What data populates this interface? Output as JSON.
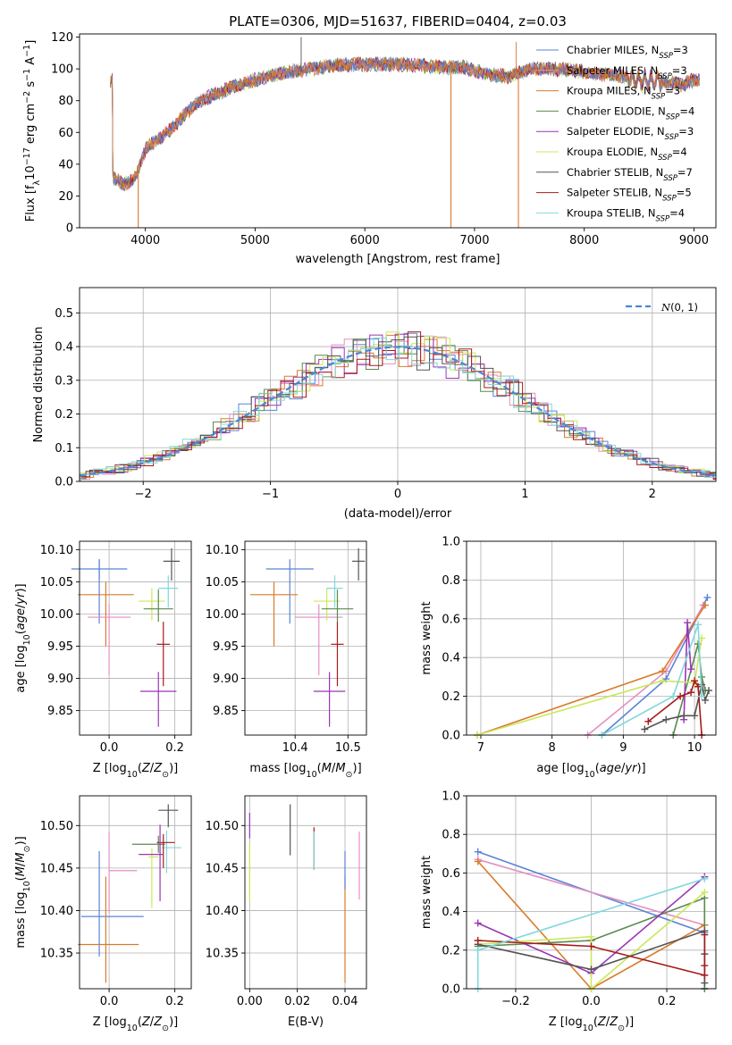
{
  "chart_data": [
    {
      "id": "spectrum",
      "type": "line",
      "title": "PLATE=0306, MJD=51637, FIBERID=0404, z=0.03",
      "xlabel": "wavelength [Angstrom, rest frame]",
      "ylabel": "Flux [f_λ10⁻¹⁷ erg cm⁻² s⁻¹ A⁻¹]",
      "xlim": [
        3400,
        9200
      ],
      "ylim": [
        0,
        122
      ],
      "xticks": [
        "4000",
        "5000",
        "6000",
        "7000",
        "8000",
        "9000"
      ],
      "yticks": [
        "0",
        "20",
        "40",
        "60",
        "80",
        "100",
        "120"
      ],
      "grid": false,
      "legend_position": "top-right",
      "series": [
        {
          "name": "Chabrier MILES, N",
          "sub": "SSP",
          "suffix": "=3",
          "color": "#5b84d6"
        },
        {
          "name": "Salpeter MILES, N",
          "sub": "SSP",
          "suffix": "=3",
          "color": "#e58fc2"
        },
        {
          "name": "Kroupa MILES, N",
          "sub": "SSP",
          "suffix": "=3",
          "color": "#d97b2b"
        },
        {
          "name": "Chabrier ELODIE, N",
          "sub": "SSP",
          "suffix": "=4",
          "color": "#5a8a4f"
        },
        {
          "name": "Salpeter ELODIE, N",
          "sub": "SSP",
          "suffix": "=3",
          "color": "#9b35b5"
        },
        {
          "name": "Kroupa ELODIE, N",
          "sub": "SSP",
          "suffix": "=4",
          "color": "#cbe85a"
        },
        {
          "name": "Chabrier STELIB, N",
          "sub": "SSP",
          "suffix": "=7",
          "color": "#555555"
        },
        {
          "name": "Salpeter STELIB, N",
          "sub": "SSP",
          "suffix": "=5",
          "color": "#a81a1a"
        },
        {
          "name": "Kroupa STELIB, N",
          "sub": "SSP",
          "suffix": "=4",
          "color": "#80d8dc"
        }
      ],
      "continuum_x": [
        3700,
        3800,
        3900,
        4000,
        4100,
        4200,
        4300,
        4400,
        4500,
        4700,
        4900,
        5100,
        5300,
        5500,
        5700,
        6000,
        6300,
        6500,
        6700,
        6900,
        7100,
        7300,
        7500,
        7700,
        7900,
        8100,
        8300,
        8500,
        8700,
        8900,
        9000
      ],
      "continuum_y": [
        32,
        27,
        31,
        49,
        55,
        60,
        67,
        74,
        80,
        86,
        91,
        95,
        98,
        100,
        102,
        103,
        103,
        102,
        101,
        101,
        97,
        95,
        100,
        100,
        99,
        97,
        96,
        93,
        92,
        90,
        93
      ],
      "dips": [
        {
          "x": 3935,
          "y": 0,
          "color": "#d97b2b"
        },
        {
          "x": 6785,
          "y": 0,
          "color": "#d97b2b"
        },
        {
          "x": 7400,
          "y": 0,
          "color": "#d97b2b"
        }
      ]
    },
    {
      "id": "residuals",
      "type": "bar",
      "xlabel": "(data-model)/error",
      "ylabel": "Normed distribution",
      "xlim": [
        -2.5,
        2.5
      ],
      "ylim": [
        0,
        0.575
      ],
      "xticks": [
        "−2",
        "−1",
        "0",
        "1",
        "2"
      ],
      "yticks": [
        "0.0",
        "0.1",
        "0.2",
        "0.3",
        "0.4",
        "0.5"
      ],
      "grid": true,
      "legend_position": "top-right",
      "legend_label": "N(0, 1)",
      "bin_width": 0.1
    },
    {
      "id": "age-vs-Z",
      "type": "scatter",
      "xlabel": "Z [log10(Z/Z⊙)]",
      "ylabel": "age  [log10(age/yr)]",
      "xlim": [
        -0.09,
        0.25
      ],
      "ylim": [
        9.812,
        10.113
      ],
      "xticks": [
        "0.0",
        "0.2"
      ],
      "yticks": [
        "9.85",
        "9.90",
        "9.95",
        "10.00",
        "10.05",
        "10.10"
      ],
      "grid": true,
      "points": [
        {
          "x": -0.03,
          "y": 10.07,
          "ex": 0.085,
          "ey": 0.015,
          "eyu": 0.015,
          "color": "#5b84d6"
        },
        {
          "x": -0.03,
          "y": 10.07,
          "ex": 0.0,
          "ey": 0.085,
          "eyu": 0.015,
          "color": "#5b84d6"
        },
        {
          "x": -0.01,
          "y": 10.03,
          "ex": 0.085,
          "ey": 0.08,
          "eyu": 0.02,
          "color": "#d97b2b"
        },
        {
          "x": 0.0,
          "y": 9.995,
          "ex": 0.065,
          "ey": 0.09,
          "eyu": 0.02,
          "color": "#e58fc2"
        },
        {
          "x": 0.13,
          "y": 10.02,
          "ex": 0.04,
          "ey": 0.03,
          "eyu": 0.02,
          "color": "#cbe85a"
        },
        {
          "x": 0.15,
          "y": 10.008,
          "ex": 0.045,
          "ey": 0.02,
          "eyu": 0.03,
          "color": "#5a8a4f"
        },
        {
          "x": 0.18,
          "y": 10.04,
          "ex": 0.03,
          "ey": 0.03,
          "eyu": 0.02,
          "color": "#80d8dc"
        },
        {
          "x": 0.19,
          "y": 10.082,
          "ex": 0.025,
          "ey": 0.03,
          "eyu": 0.02,
          "color": "#555555"
        },
        {
          "x": 0.165,
          "y": 9.953,
          "ex": 0.02,
          "ey": 0.065,
          "eyu": 0.035,
          "color": "#a81a1a"
        },
        {
          "x": 0.15,
          "y": 9.88,
          "ex": 0.055,
          "ey": 0.055,
          "eyu": 0.03,
          "color": "#9b35b5"
        }
      ]
    },
    {
      "id": "age-vs-mass",
      "type": "scatter",
      "xlabel": "mass [log10(M/M⊙)]",
      "ylabel": "",
      "xlim": [
        10.305,
        10.535
      ],
      "ylim": [
        9.812,
        10.113
      ],
      "xticks": [
        "10.4",
        "10.5"
      ],
      "yticks": [
        "9.85",
        "9.90",
        "9.95",
        "10.00",
        "10.05",
        "10.10"
      ],
      "grid": true,
      "points": [
        {
          "x": 10.39,
          "y": 10.07,
          "ex": 0.045,
          "ey": 0.085,
          "eyu": 0.015,
          "color": "#5b84d6"
        },
        {
          "x": 10.36,
          "y": 10.03,
          "ex": 0.045,
          "ey": 0.08,
          "eyu": 0.02,
          "color": "#d97b2b"
        },
        {
          "x": 10.445,
          "y": 9.995,
          "ex": 0.045,
          "ey": 0.09,
          "eyu": 0.02,
          "color": "#e58fc2"
        },
        {
          "x": 10.46,
          "y": 10.02,
          "ex": 0.025,
          "ey": 0.03,
          "eyu": 0.02,
          "color": "#cbe85a"
        },
        {
          "x": 10.48,
          "y": 10.008,
          "ex": 0.03,
          "ey": 0.02,
          "eyu": 0.03,
          "color": "#5a8a4f"
        },
        {
          "x": 10.475,
          "y": 10.04,
          "ex": 0.015,
          "ey": 0.03,
          "eyu": 0.02,
          "color": "#80d8dc"
        },
        {
          "x": 10.52,
          "y": 10.082,
          "ex": 0.012,
          "ey": 0.03,
          "eyu": 0.02,
          "color": "#555555"
        },
        {
          "x": 10.48,
          "y": 9.953,
          "ex": 0.012,
          "ey": 0.065,
          "eyu": 0.035,
          "color": "#a81a1a"
        },
        {
          "x": 10.465,
          "y": 9.88,
          "ex": 0.03,
          "ey": 0.055,
          "eyu": 0.03,
          "color": "#9b35b5"
        }
      ]
    },
    {
      "id": "massweight-vs-age",
      "type": "line",
      "xlabel": "age  [log10(age/yr)]",
      "ylabel": "mass weight",
      "xlim": [
        6.8,
        10.3
      ],
      "ylim": [
        0.0,
        1.0
      ],
      "xticks": [
        "7",
        "8",
        "9",
        "10"
      ],
      "yticks": [
        "0.0",
        "0.2",
        "0.4",
        "0.6",
        "0.8",
        "1.0"
      ],
      "grid": true,
      "series": [
        {
          "color": "#5b84d6",
          "x": [
            8.7,
            9.6,
            10.18
          ],
          "y": [
            0.0,
            0.29,
            0.71
          ]
        },
        {
          "color": "#e58fc2",
          "x": [
            8.5,
            9.6,
            10.12
          ],
          "y": [
            0.0,
            0.33,
            0.67
          ]
        },
        {
          "color": "#d97b2b",
          "x": [
            6.95,
            9.55,
            10.15
          ],
          "y": [
            0.0,
            0.33,
            0.67
          ]
        },
        {
          "color": "#5a8a4f",
          "x": [
            9.7,
            10.05,
            10.1,
            10.15
          ],
          "y": [
            0.0,
            0.47,
            0.3,
            0.23
          ]
        },
        {
          "color": "#9b35b5",
          "x": [
            9.85,
            9.9,
            9.95
          ],
          "y": [
            0.08,
            0.58,
            0.34
          ]
        },
        {
          "color": "#cbe85a",
          "x": [
            6.95,
            9.55,
            10.0,
            10.1
          ],
          "y": [
            0.0,
            0.28,
            0.27,
            0.5
          ]
        },
        {
          "color": "#555555",
          "x": [
            9.3,
            9.6,
            9.85,
            10.0,
            10.1,
            10.15,
            10.2
          ],
          "y": [
            0.03,
            0.08,
            0.1,
            0.1,
            0.26,
            0.18,
            0.23
          ]
        },
        {
          "color": "#a81a1a",
          "x": [
            9.35,
            9.8,
            9.95,
            10.0,
            10.05,
            10.1
          ],
          "y": [
            0.07,
            0.2,
            0.22,
            0.28,
            0.25,
            0.0
          ]
        },
        {
          "color": "#80d8dc",
          "x": [
            8.7,
            9.7,
            10.05,
            10.1
          ],
          "y": [
            0.0,
            0.2,
            0.57,
            0.2
          ]
        }
      ]
    },
    {
      "id": "mass-vs-Z",
      "type": "scatter",
      "xlabel": "Z [log10(Z/Z⊙)]",
      "ylabel": "mass [log10(M/M⊙)]",
      "xlim": [
        -0.09,
        0.25
      ],
      "ylim": [
        10.308,
        10.535
      ],
      "xticks": [
        "0.0",
        "0.2"
      ],
      "yticks": [
        "10.35",
        "10.40",
        "10.45",
        "10.50"
      ],
      "grid": true,
      "points": [
        {
          "x": -0.03,
          "y": 10.393,
          "ex": 0.055,
          "exr": 0.135,
          "ey": 0.047,
          "eyu": 0.077,
          "color": "#5b84d6"
        },
        {
          "x": -0.01,
          "y": 10.36,
          "ex": 0.085,
          "exr": 0.1,
          "ey": 0.045,
          "eyu": 0.08,
          "color": "#d97b2b"
        },
        {
          "x": 0.0,
          "y": 10.447,
          "ex": 0.0,
          "exr": 0.085,
          "ey": 0.05,
          "eyu": 0.045,
          "color": "#e58fc2"
        },
        {
          "x": 0.13,
          "y": 10.463,
          "ex": 0.01,
          "exr": 0.02,
          "ey": 0.06,
          "eyu": 0.01,
          "color": "#cbe85a"
        },
        {
          "x": 0.15,
          "y": 10.478,
          "ex": 0.08,
          "exr": 0.02,
          "ey": 0.01,
          "eyu": 0.01,
          "color": "#5a8a4f"
        },
        {
          "x": 0.175,
          "y": 10.474,
          "ex": 0.015,
          "exr": 0.045,
          "ey": 0.03,
          "eyu": 0.02,
          "color": "#80d8dc"
        },
        {
          "x": 0.18,
          "y": 10.518,
          "ex": 0.03,
          "exr": 0.03,
          "ey": 0.02,
          "eyu": 0.007,
          "color": "#555555"
        },
        {
          "x": 0.165,
          "y": 10.48,
          "ex": 0.02,
          "exr": 0.035,
          "ey": 0.03,
          "eyu": 0.01,
          "color": "#a81a1a"
        },
        {
          "x": 0.155,
          "y": 10.466,
          "ex": 0.065,
          "exr": 0.01,
          "ey": 0.055,
          "eyu": 0.035,
          "color": "#9b35b5"
        }
      ]
    },
    {
      "id": "mass-vs-EBV",
      "type": "scatter",
      "xlabel": "E(B-V)",
      "ylabel": "",
      "xlim": [
        -0.002,
        0.049
      ],
      "ylim": [
        10.308,
        10.535
      ],
      "xticks": [
        "0.00",
        "0.02",
        "0.04"
      ],
      "yticks": [
        "10.35",
        "10.40",
        "10.45",
        "10.50"
      ],
      "grid": true,
      "points": [
        {
          "x": 0.0,
          "y": 10.5,
          "ey": 0.015,
          "eyu": 0.015,
          "color": "#9b35b5"
        },
        {
          "x": 0.0,
          "y": 10.46,
          "ey": 0.05,
          "eyu": 0.02,
          "color": "#cbe85a"
        },
        {
          "x": 0.017,
          "y": 10.495,
          "ey": 0.03,
          "eyu": 0.03,
          "color": "#555555"
        },
        {
          "x": 0.027,
          "y": 10.473,
          "ey": 0.025,
          "eyu": 0.025,
          "color": "#a81a1a"
        },
        {
          "x": 0.027,
          "y": 10.473,
          "ey": 0.025,
          "eyu": 0.02,
          "color": "#80d8dc"
        },
        {
          "x": 0.04,
          "y": 10.4,
          "ey": 0.085,
          "eyu": 0.04,
          "color": "#d97b2b"
        },
        {
          "x": 0.04,
          "y": 10.455,
          "ey": 0.03,
          "eyu": 0.015,
          "color": "#5b84d6"
        },
        {
          "x": 0.046,
          "y": 10.453,
          "ey": 0.04,
          "eyu": 0.04,
          "color": "#e58fc2"
        }
      ]
    },
    {
      "id": "massweight-vs-Z",
      "type": "line",
      "xlabel": "Z [log10(Z/Z⊙)]",
      "ylabel": "mass weight",
      "xlim": [
        -0.33,
        0.33
      ],
      "ylim": [
        0.0,
        1.0
      ],
      "xticks": [
        "−0.2",
        "0.0",
        "0.2"
      ],
      "yticks": [
        "0.0",
        "0.2",
        "0.4",
        "0.6",
        "0.8",
        "1.0"
      ],
      "grid": true,
      "series": [
        {
          "color": "#5b84d6",
          "x": [
            -0.3,
            0.3,
            0.3
          ],
          "y": [
            0.71,
            0.29,
            0.0
          ]
        },
        {
          "color": "#e58fc2",
          "x": [
            -0.3,
            0.3,
            0.3
          ],
          "y": [
            0.67,
            0.33,
            0.0
          ]
        },
        {
          "color": "#d97b2b",
          "x": [
            -0.3,
            0.0,
            0.3
          ],
          "y": [
            0.66,
            0.0,
            0.33
          ]
        },
        {
          "color": "#5a8a4f",
          "x": [
            -0.3,
            0.0,
            0.3,
            0.3
          ],
          "y": [
            0.22,
            0.25,
            0.47,
            0.0
          ]
        },
        {
          "color": "#9b35b5",
          "x": [
            -0.3,
            0.0,
            0.3
          ],
          "y": [
            0.34,
            0.08,
            0.58
          ]
        },
        {
          "color": "#cbe85a",
          "x": [
            -0.3,
            0.0,
            0.0,
            0.3
          ],
          "y": [
            0.23,
            0.27,
            0.0,
            0.5
          ]
        },
        {
          "color": "#555555",
          "x": [
            -0.3,
            0.0,
            0.3,
            0.3,
            0.3
          ],
          "y": [
            0.23,
            0.1,
            0.3,
            0.18,
            0.03
          ]
        },
        {
          "color": "#a81a1a",
          "x": [
            -0.3,
            0.0,
            0.3,
            0.3,
            0.3
          ],
          "y": [
            0.25,
            0.22,
            0.07,
            0.28,
            0.12
          ]
        },
        {
          "color": "#80d8dc",
          "x": [
            -0.3,
            -0.3,
            0.3
          ],
          "y": [
            0.0,
            0.2,
            0.57
          ]
        }
      ]
    }
  ]
}
